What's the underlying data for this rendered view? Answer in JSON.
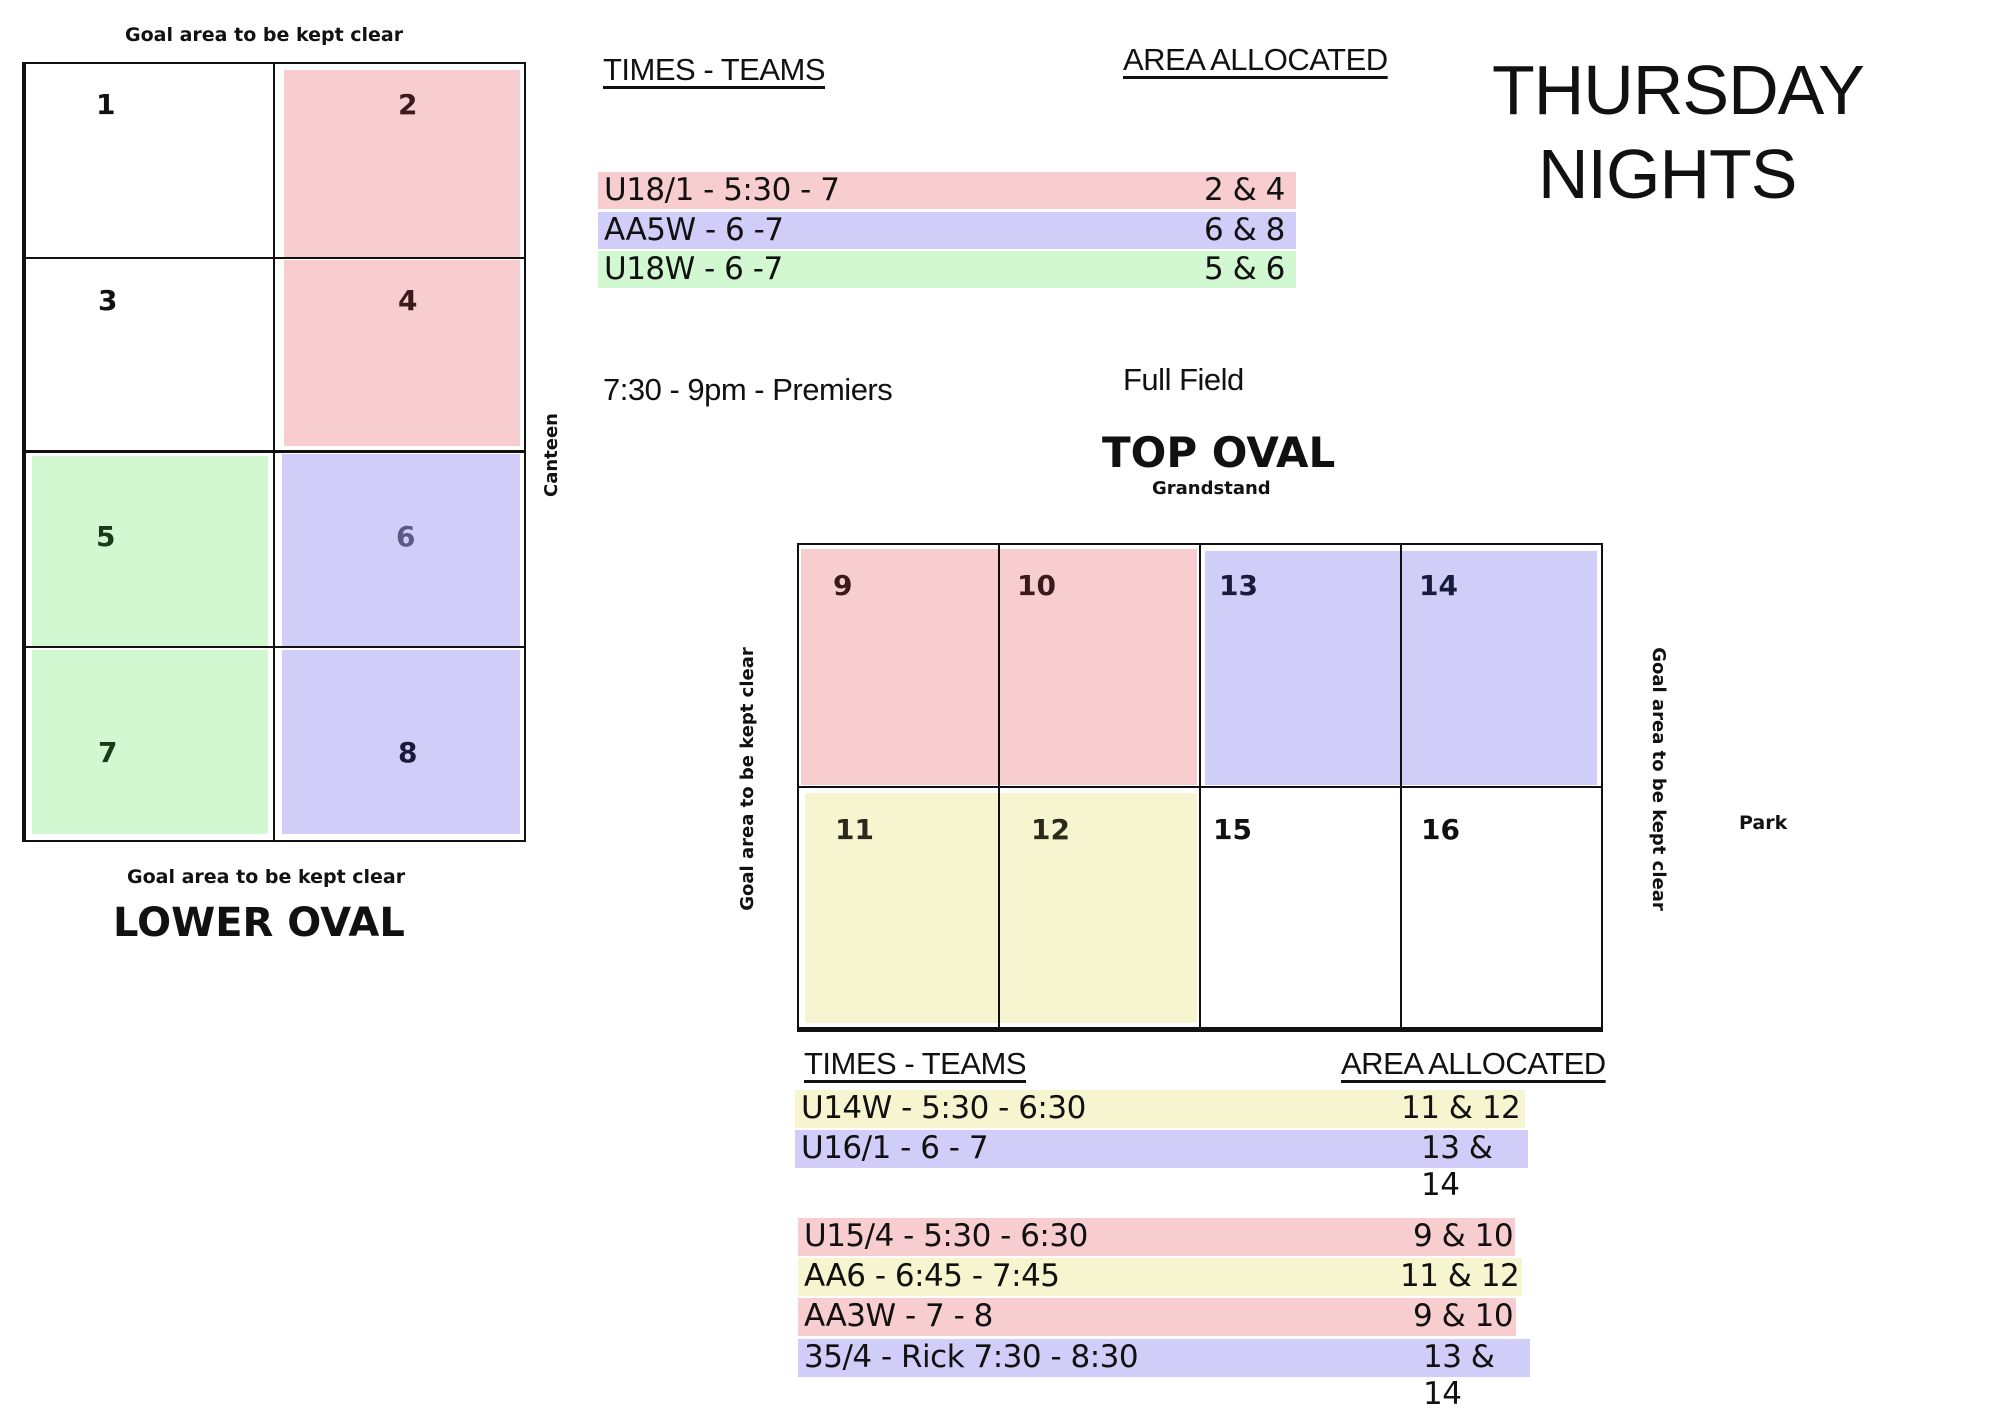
{
  "page": {
    "title_line1": "THURSDAY",
    "title_line2": "NIGHTS"
  },
  "colors": {
    "pink": "#f8cdd0",
    "lavender": "#d0cdf8",
    "green": "#d2f8d2",
    "yellow": "#f7f5cf",
    "line": "#111111"
  },
  "lower_oval": {
    "title": "LOWER OVAL",
    "goal_top": "Goal area to be kept clear",
    "goal_bottom": "Goal area to be kept clear",
    "side_label": "Canteen",
    "cells": [
      "1",
      "2",
      "3",
      "4",
      "5",
      "6",
      "7",
      "8"
    ]
  },
  "top_schedule": {
    "times_header": "TIMES - TEAMS",
    "area_header": "AREA ALLOCATED",
    "rows": [
      {
        "team": "U18/1 - 5:30 - 7",
        "area": "2 & 4"
      },
      {
        "team": "AA5W - 6 -7",
        "area": "6 & 8"
      },
      {
        "team": "U18W - 6 -7",
        "area": "5 & 6"
      }
    ],
    "premiers_time": "7:30 - 9pm - Premiers",
    "premiers_area": "Full Field"
  },
  "top_oval": {
    "title": "TOP OVAL",
    "subtitle": "Grandstand",
    "goal_left": "Goal area to be kept clear",
    "goal_right": "Goal area to be kept clear",
    "side_label": "Park",
    "cells": [
      "9",
      "10",
      "13",
      "14",
      "11",
      "12",
      "15",
      "16"
    ]
  },
  "bottom_schedule": {
    "times_header": "TIMES - TEAMS",
    "area_header": "AREA ALLOCATED",
    "rows": [
      {
        "team": "U14W - 5:30 - 6:30",
        "area": "11 & 12"
      },
      {
        "team": "U16/1 - 6 - 7",
        "area": "13 & 14"
      },
      {
        "team": "U15/4 - 5:30 - 6:30",
        "area": "9 & 10"
      },
      {
        "team": "AA6 - 6:45 - 7:45",
        "area": "11 & 12"
      },
      {
        "team": "AA3W - 7 - 8",
        "area": "9 & 10"
      },
      {
        "team": "35/4 - Rick 7:30 - 8:30",
        "area": "13 & 14"
      }
    ]
  }
}
